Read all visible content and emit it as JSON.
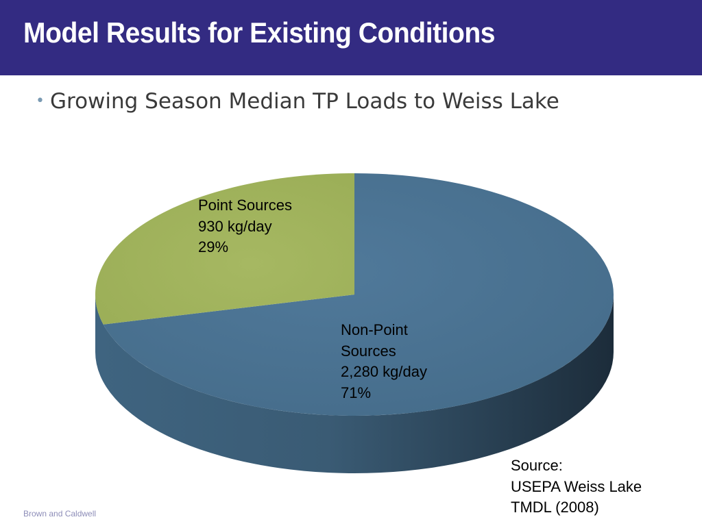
{
  "slide": {
    "title": "Model Results for Existing Conditions",
    "bullet": "Growing Season Median TP Loads to Weiss Lake",
    "footer": "Brown and Caldwell"
  },
  "source_note": {
    "line1": "Source:",
    "line2": "USEPA Weiss Lake",
    "line3": "TMDL (2008)"
  },
  "colors": {
    "title_bar": "#332b82",
    "point_sources": "#a0b25c",
    "non_point_sources": "#4a7390"
  },
  "chart_data": {
    "type": "pie",
    "style": "3d",
    "slices": [
      {
        "label": "Point Sources",
        "value": 930,
        "unit": "kg/day",
        "value_text": "930 kg/day",
        "percent": 29,
        "percent_text": "29%",
        "color": "#a0b25c"
      },
      {
        "label_lines": [
          "Non-Point",
          "Sources"
        ],
        "label": "Non-Point Sources",
        "value": 2280,
        "unit": "kg/day",
        "value_text": "2,280 kg/day",
        "percent": 71,
        "percent_text": "71%",
        "color": "#4a7390"
      }
    ]
  }
}
